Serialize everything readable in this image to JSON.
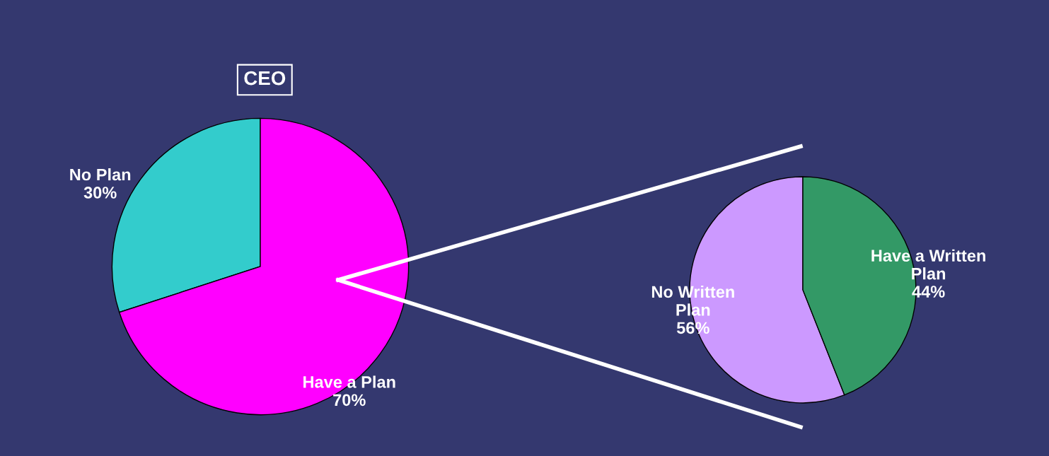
{
  "chart_data": [
    {
      "type": "pie",
      "title": "CEO",
      "categories": [
        "No Plan",
        "Have a Plan"
      ],
      "values": [
        30,
        70
      ],
      "colors": [
        "#33cccc",
        "#ff00ff"
      ],
      "value_labels": [
        "30%",
        "70%"
      ]
    },
    {
      "type": "pie",
      "categories": [
        "No Written Plan",
        "Have a Written Plan"
      ],
      "values": [
        56,
        44
      ],
      "colors": [
        "#cc99ff",
        "#339966"
      ],
      "value_labels": [
        "56%",
        "44%"
      ]
    }
  ]
}
